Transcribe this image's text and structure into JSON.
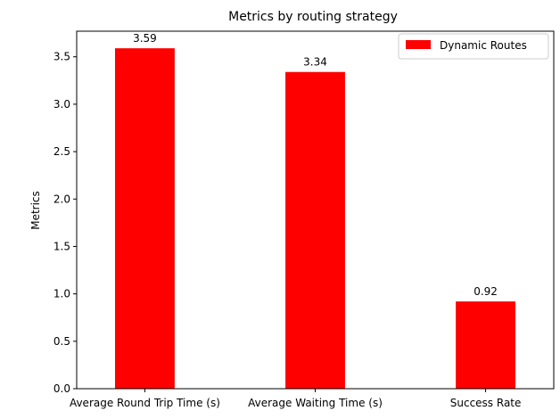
{
  "chart_data": {
    "type": "bar",
    "title": "Metrics by routing strategy",
    "xlabel": "",
    "ylabel": "Metrics",
    "categories": [
      "Average Round Trip Time (s)",
      "Average Waiting Time (s)",
      "Success Rate"
    ],
    "series": [
      {
        "name": "Dynamic Routes",
        "values": [
          3.59,
          3.34,
          0.92
        ],
        "color": "#ff0000",
        "data_labels": [
          "3.59",
          "3.34",
          "0.92"
        ]
      }
    ],
    "ylim": [
      0,
      3.77
    ],
    "yticks": [
      0.0,
      0.5,
      1.0,
      1.5,
      2.0,
      2.5,
      3.0,
      3.5
    ],
    "ytick_labels": [
      "0.0",
      "0.5",
      "1.0",
      "1.5",
      "2.0",
      "2.5",
      "3.0",
      "3.5"
    ],
    "grid": false,
    "legend": {
      "placement": "top-right",
      "entries": [
        "Dynamic Routes"
      ]
    }
  }
}
